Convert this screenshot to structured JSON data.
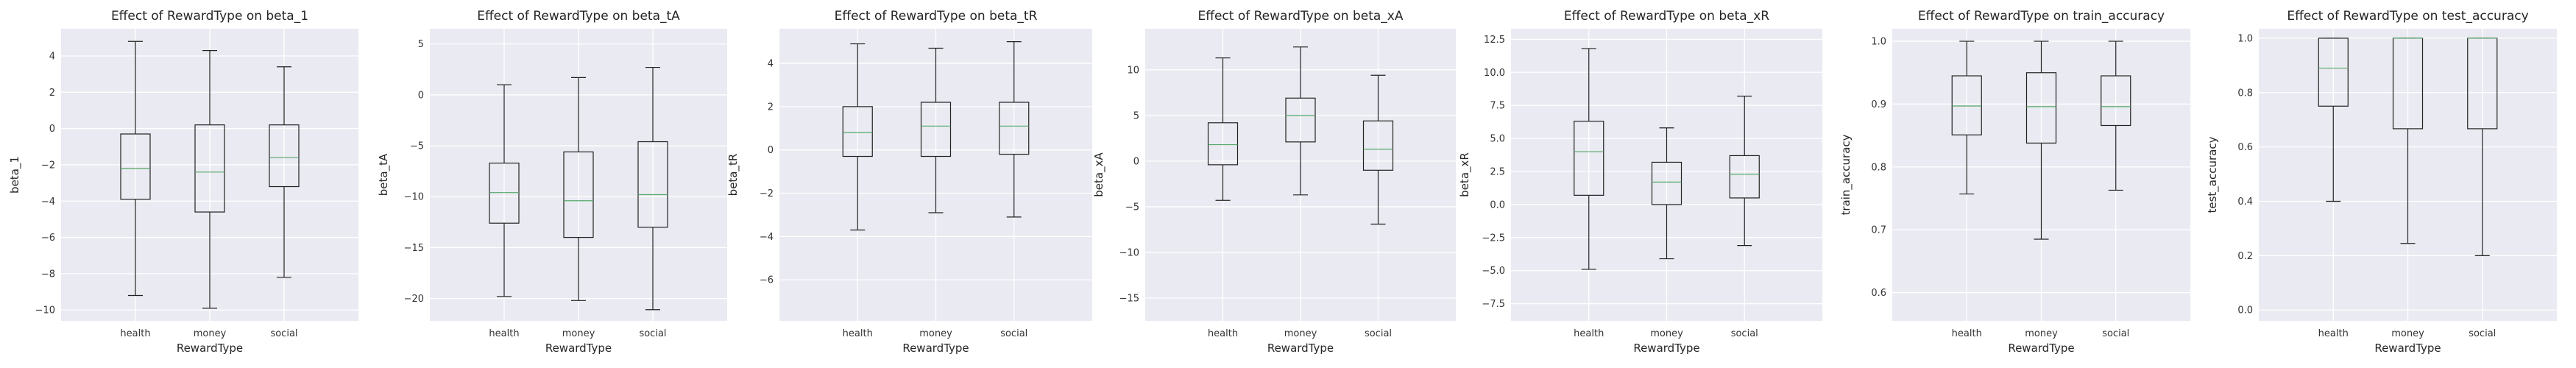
{
  "figure": {
    "background": "#ffffff",
    "axes_face": "#eaeaf2",
    "grid_color": "#ffffff",
    "box_color": "#222222",
    "median_color": "#55a868"
  },
  "chart_data": [
    {
      "type": "box",
      "title": "Effect of RewardType on beta_1",
      "xlabel": "RewardType",
      "ylabel": "beta_1",
      "categories": [
        "health",
        "money",
        "social"
      ],
      "ylim": [
        -10.6,
        5.5
      ],
      "yticks": [
        -10,
        -8,
        -6,
        -4,
        -2,
        0,
        2,
        4
      ],
      "ytick_labels": [
        "−10",
        "−8",
        "−6",
        "−4",
        "−2",
        "0",
        "2",
        "4"
      ],
      "boxes": [
        {
          "whislo": -9.2,
          "q1": -3.9,
          "med": -2.2,
          "q3": -0.3,
          "whishi": 4.8
        },
        {
          "whislo": -9.9,
          "q1": -4.6,
          "med": -2.4,
          "q3": 0.2,
          "whishi": 4.3
        },
        {
          "whislo": -8.2,
          "q1": -3.2,
          "med": -1.6,
          "q3": 0.2,
          "whishi": 3.4
        }
      ]
    },
    {
      "type": "box",
      "title": "Effect of RewardType on beta_tA",
      "xlabel": "RewardType",
      "ylabel": "beta_tA",
      "categories": [
        "health",
        "money",
        "social"
      ],
      "ylim": [
        -22.2,
        6.5
      ],
      "yticks": [
        -20,
        -15,
        -10,
        -5,
        0,
        5
      ],
      "ytick_labels": [
        "−20",
        "−15",
        "−10",
        "−5",
        "0",
        "5"
      ],
      "boxes": [
        {
          "whislo": -19.8,
          "q1": -12.6,
          "med": -9.6,
          "q3": -6.7,
          "whishi": 1.0
        },
        {
          "whislo": -20.2,
          "q1": -14.0,
          "med": -10.4,
          "q3": -5.6,
          "whishi": 1.7
        },
        {
          "whislo": -21.1,
          "q1": -13.0,
          "med": -9.8,
          "q3": -4.6,
          "whishi": 2.7
        }
      ]
    },
    {
      "type": "box",
      "title": "Effect of RewardType on beta_tR",
      "xlabel": "RewardType",
      "ylabel": "beta_tR",
      "categories": [
        "health",
        "money",
        "social"
      ],
      "ylim": [
        -7.9,
        5.6
      ],
      "yticks": [
        -6,
        -4,
        -2,
        0,
        2,
        4
      ],
      "ytick_labels": [
        "−6",
        "−4",
        "−2",
        "0",
        "2",
        "4"
      ],
      "boxes": [
        {
          "whislo": -3.7,
          "q1": -0.3,
          "med": 0.8,
          "q3": 2.0,
          "whishi": 4.9
        },
        {
          "whislo": -2.9,
          "q1": -0.3,
          "med": 1.1,
          "q3": 2.2,
          "whishi": 4.7
        },
        {
          "whislo": -3.1,
          "q1": -0.2,
          "med": 1.1,
          "q3": 2.2,
          "whishi": 5.0
        }
      ]
    },
    {
      "type": "box",
      "title": "Effect of RewardType on beta_xA",
      "xlabel": "RewardType",
      "ylabel": "beta_xA",
      "categories": [
        "health",
        "money",
        "social"
      ],
      "ylim": [
        -17.5,
        14.5
      ],
      "yticks": [
        -15,
        -10,
        -5,
        0,
        5,
        10
      ],
      "ytick_labels": [
        "−15",
        "−10",
        "−5",
        "0",
        "5",
        "10"
      ],
      "boxes": [
        {
          "whislo": -4.3,
          "q1": -0.4,
          "med": 1.8,
          "q3": 4.2,
          "whishi": 11.3
        },
        {
          "whislo": -3.7,
          "q1": 2.1,
          "med": 5.0,
          "q3": 6.9,
          "whishi": 12.5
        },
        {
          "whislo": -6.9,
          "q1": -1.0,
          "med": 1.3,
          "q3": 4.4,
          "whishi": 9.4
        }
      ]
    },
    {
      "type": "box",
      "title": "Effect of RewardType on beta_xR",
      "xlabel": "RewardType",
      "ylabel": "beta_xR",
      "categories": [
        "health",
        "money",
        "social"
      ],
      "ylim": [
        -8.8,
        13.3
      ],
      "yticks": [
        -7.5,
        -5.0,
        -2.5,
        0.0,
        2.5,
        5.0,
        7.5,
        10.0,
        12.5
      ],
      "ytick_labels": [
        "−7.5",
        "−5.0",
        "−2.5",
        "0.0",
        "2.5",
        "5.0",
        "7.5",
        "10.0",
        "12.5"
      ],
      "boxes": [
        {
          "whislo": -4.9,
          "q1": 0.7,
          "med": 4.0,
          "q3": 6.3,
          "whishi": 11.8
        },
        {
          "whislo": -4.1,
          "q1": 0.0,
          "med": 1.7,
          "q3": 3.2,
          "whishi": 5.8
        },
        {
          "whislo": -3.1,
          "q1": 0.5,
          "med": 2.3,
          "q3": 3.7,
          "whishi": 8.2
        }
      ]
    },
    {
      "type": "box",
      "title": "Effect of RewardType on train_accuracy",
      "xlabel": "RewardType",
      "ylabel": "train_accuracy",
      "categories": [
        "health",
        "money",
        "social"
      ],
      "ylim": [
        0.555,
        1.02
      ],
      "yticks": [
        0.6,
        0.7,
        0.8,
        0.9,
        1.0
      ],
      "ytick_labels": [
        "0.6",
        "0.7",
        "0.8",
        "0.9",
        "1.0"
      ],
      "boxes": [
        {
          "whislo": 0.757,
          "q1": 0.851,
          "med": 0.897,
          "q3": 0.945,
          "whishi": 1.0
        },
        {
          "whislo": 0.685,
          "q1": 0.838,
          "med": 0.896,
          "q3": 0.95,
          "whishi": 1.0
        },
        {
          "whislo": 0.763,
          "q1": 0.866,
          "med": 0.896,
          "q3": 0.945,
          "whishi": 1.0
        }
      ]
    },
    {
      "type": "box",
      "title": "Effect of RewardType on test_accuracy",
      "xlabel": "RewardType",
      "ylabel": "test_accuracy",
      "categories": [
        "health",
        "money",
        "social"
      ],
      "ylim": [
        -0.04,
        1.035
      ],
      "yticks": [
        0.0,
        0.2,
        0.4,
        0.6,
        0.8,
        1.0
      ],
      "ytick_labels": [
        "0.0",
        "0.2",
        "0.4",
        "0.6",
        "0.8",
        "1.0"
      ],
      "boxes": [
        {
          "whislo": 0.4,
          "q1": 0.75,
          "med": 0.89,
          "q3": 1.0,
          "whishi": 1.0
        },
        {
          "whislo": 0.245,
          "q1": 0.667,
          "med": 1.0,
          "q3": 1.0,
          "whishi": 1.0
        },
        {
          "whislo": 0.2,
          "q1": 0.667,
          "med": 1.0,
          "q3": 1.0,
          "whishi": 1.0
        }
      ]
    }
  ]
}
